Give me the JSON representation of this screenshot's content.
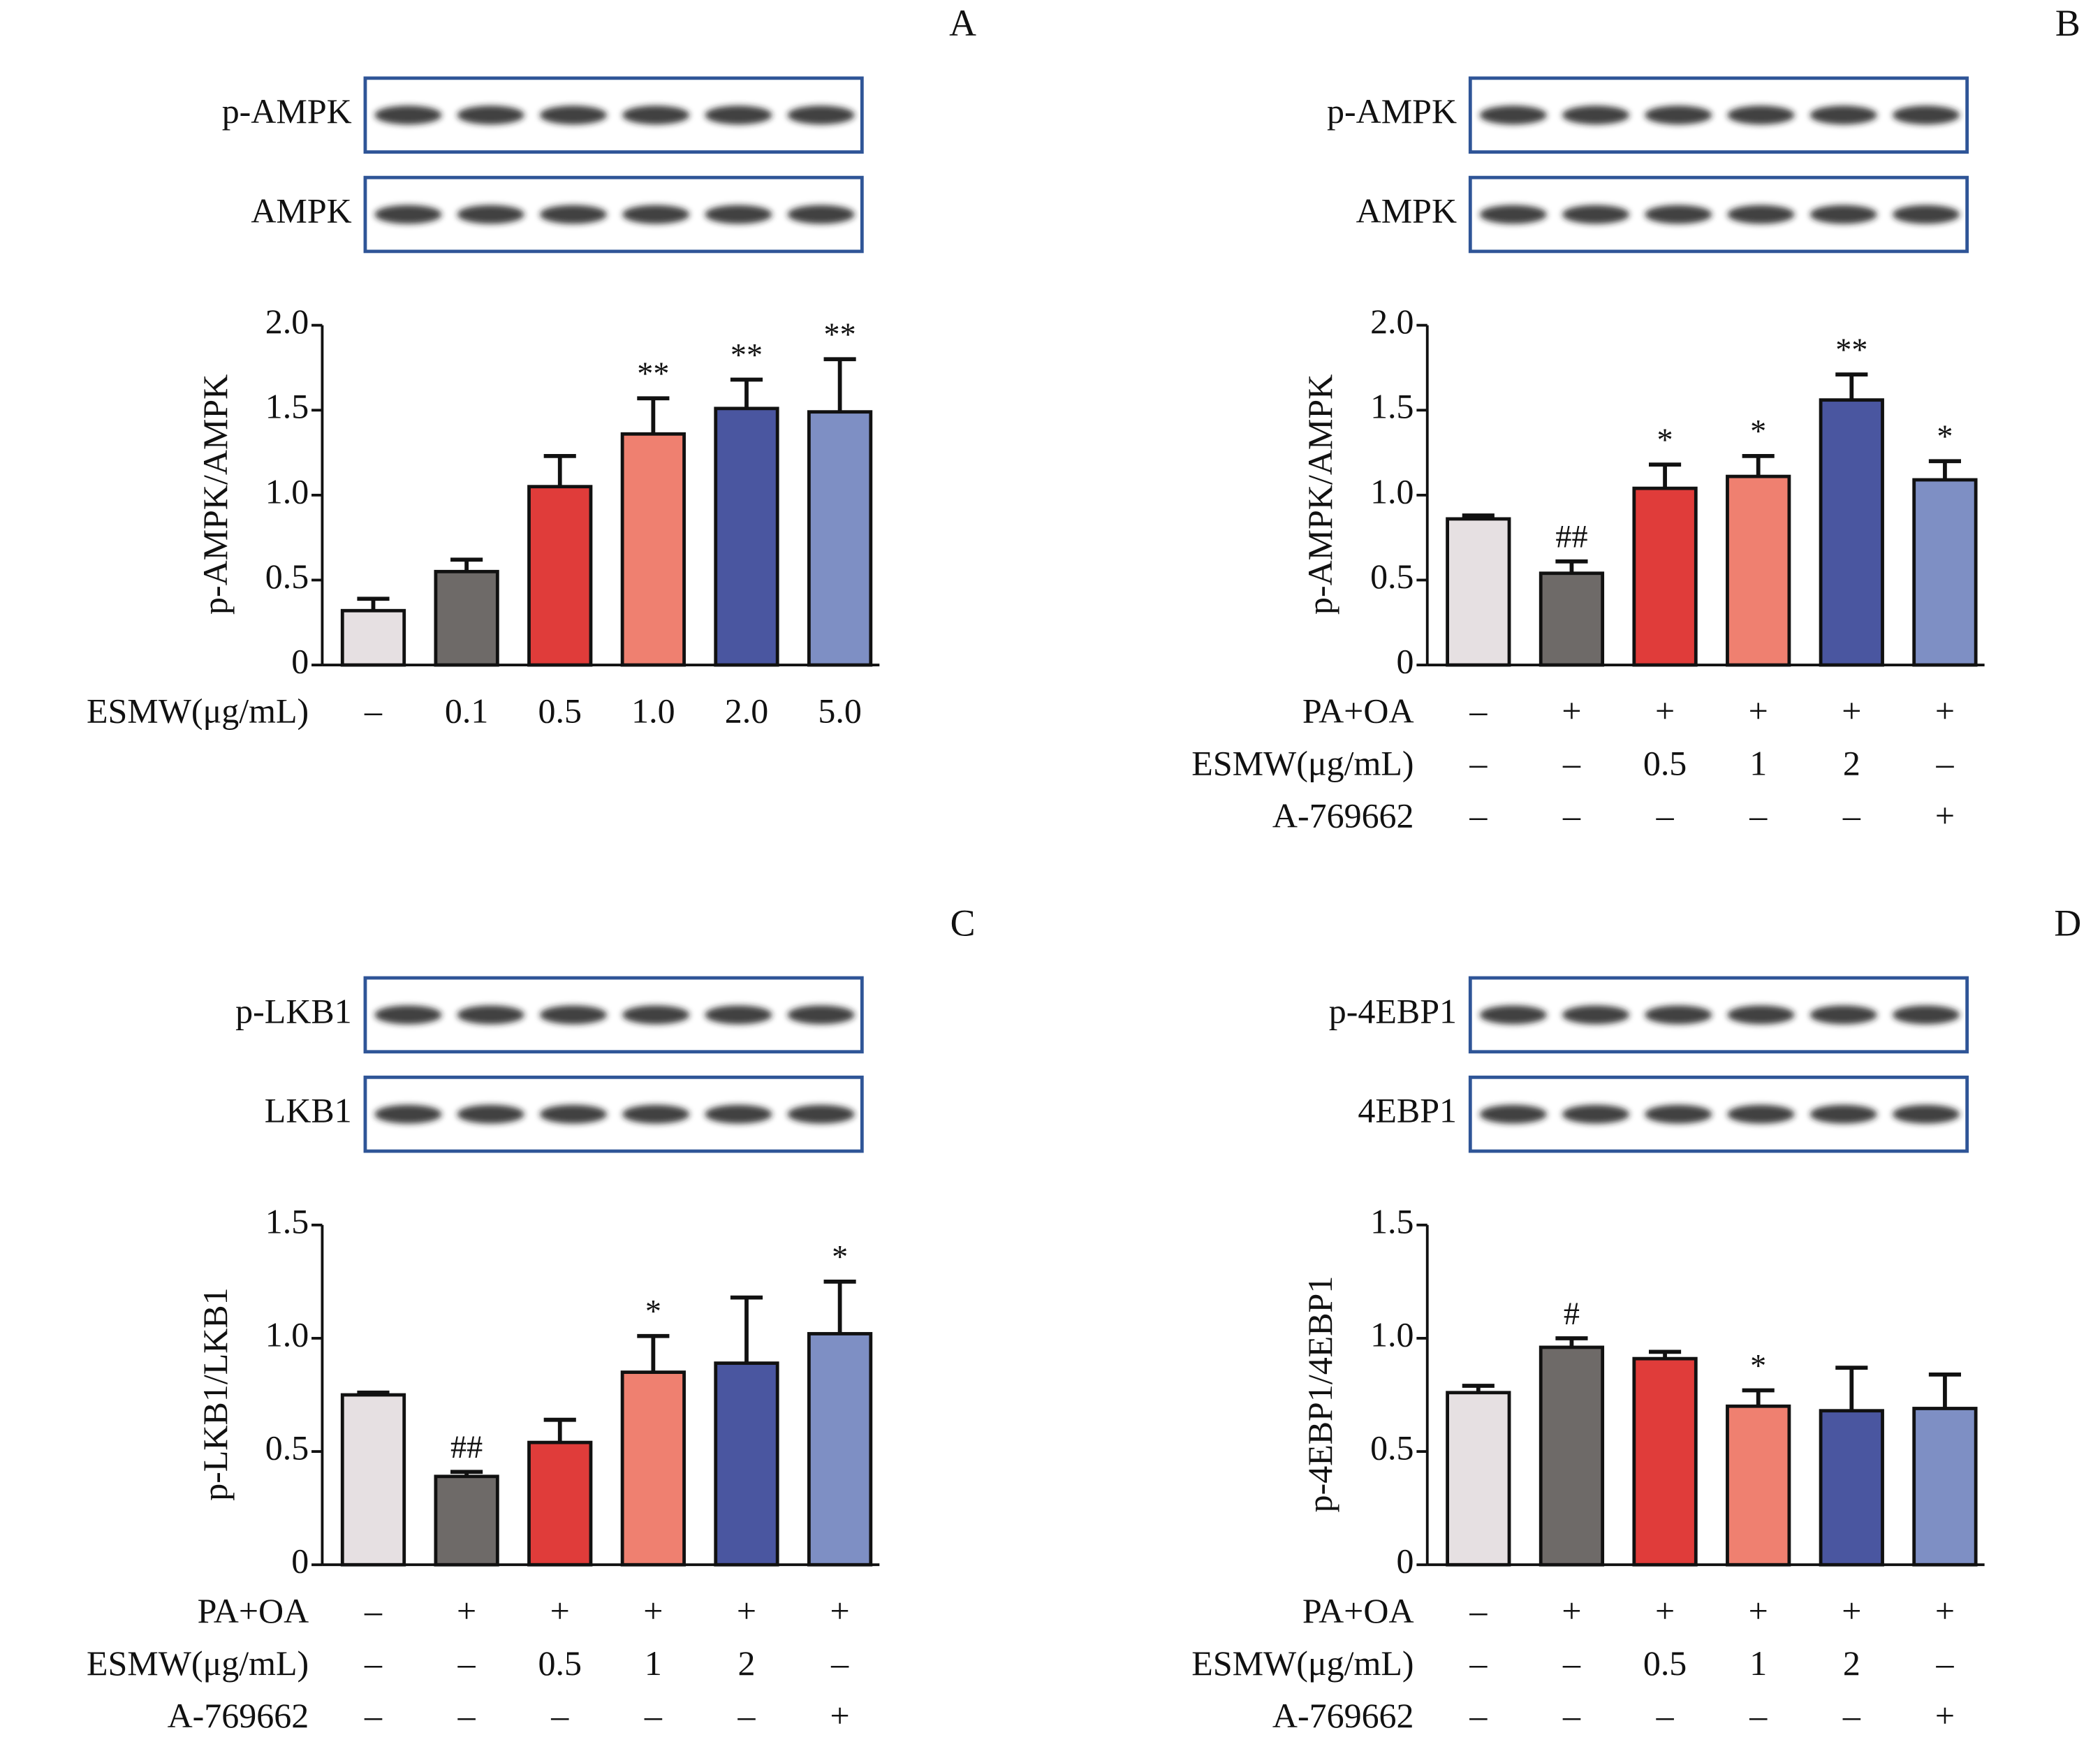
{
  "chart_data": [
    {
      "type": "bar",
      "panel_label": "A",
      "blots": [
        "p-AMPK",
        "AMPK"
      ],
      "ylabel": "p-AMPK/AMPK",
      "ylim": [
        0,
        2
      ],
      "yticks": [
        0,
        0.5,
        {
          "value": 1,
          "label": "1.0"
        },
        1.5,
        {
          "value": 2,
          "label": "2.0"
        }
      ],
      "values": [
        0.32,
        0.55,
        1.05,
        1.36,
        1.51,
        1.49
      ],
      "errors": [
        0.07,
        0.07,
        0.18,
        0.21,
        0.17,
        0.31
      ],
      "colors": [
        "#e6e0e2",
        "#6e6a68",
        "#e03c3a",
        "#ef8070",
        "#4a56a0",
        "#7e8fc4"
      ],
      "annotations": [
        null,
        null,
        null,
        "**",
        "**",
        "**"
      ],
      "conditions": [
        {
          "label": "ESMW(μg/mL)",
          "values": [
            "–",
            "0.1",
            "0.5",
            "1.0",
            "2.0",
            "5.0"
          ]
        }
      ]
    },
    {
      "type": "bar",
      "panel_label": "B",
      "blots": [
        "p-AMPK",
        "AMPK"
      ],
      "ylabel": "p-AMPK/AMPK",
      "ylim": [
        0,
        2
      ],
      "yticks": [
        0,
        0.5,
        {
          "value": 1,
          "label": "1.0"
        },
        1.5,
        {
          "value": 2,
          "label": "2.0"
        }
      ],
      "values": [
        0.86,
        0.54,
        1.04,
        1.11,
        1.56,
        1.09
      ],
      "errors": [
        0.02,
        0.07,
        0.14,
        0.12,
        0.15,
        0.11
      ],
      "colors": [
        "#e6e0e2",
        "#6e6a68",
        "#e03c3a",
        "#ef8070",
        "#4a56a0",
        "#7e8fc4"
      ],
      "annotations": [
        null,
        "##",
        "*",
        "*",
        "**",
        "*"
      ],
      "conditions": [
        {
          "label": "PA+OA",
          "values": [
            "–",
            "+",
            "+",
            "+",
            "+",
            "+"
          ]
        },
        {
          "label": "ESMW(μg/mL)",
          "values": [
            "–",
            "–",
            "0.5",
            "1",
            "2",
            "–"
          ]
        },
        {
          "label": "A-769662",
          "values": [
            "–",
            "–",
            "–",
            "–",
            "–",
            "+"
          ]
        }
      ]
    },
    {
      "type": "bar",
      "panel_label": "C",
      "blots": [
        "p-LKB1",
        "LKB1"
      ],
      "ylabel": "p-LKB1/LKB1",
      "ylim": [
        0,
        1.5
      ],
      "yticks": [
        0,
        0.5,
        {
          "value": 1,
          "label": "1.0"
        },
        1.5
      ],
      "values": [
        0.75,
        0.39,
        0.54,
        0.85,
        0.89,
        1.02
      ],
      "errors": [
        0.01,
        0.02,
        0.1,
        0.16,
        0.29,
        0.23
      ],
      "colors": [
        "#e6e0e2",
        "#6e6a68",
        "#e03c3a",
        "#ef8070",
        "#4a56a0",
        "#7e8fc4"
      ],
      "annotations": [
        null,
        "##",
        null,
        "*",
        null,
        "*"
      ],
      "conditions": [
        {
          "label": "PA+OA",
          "values": [
            "–",
            "+",
            "+",
            "+",
            "+",
            "+"
          ]
        },
        {
          "label": "ESMW(μg/mL)",
          "values": [
            "–",
            "–",
            "0.5",
            "1",
            "2",
            "–"
          ]
        },
        {
          "label": "A-769662",
          "values": [
            "–",
            "–",
            "–",
            "–",
            "–",
            "+"
          ]
        }
      ]
    },
    {
      "type": "bar",
      "panel_label": "D",
      "blots": [
        "p-4EBP1",
        "4EBP1"
      ],
      "ylabel": "p-4EBP1/4EBP1",
      "ylim": [
        0,
        1.5
      ],
      "yticks": [
        0,
        0.5,
        {
          "value": 1,
          "label": "1.0"
        },
        1.5
      ],
      "values": [
        0.76,
        0.96,
        0.91,
        0.7,
        0.68,
        0.69
      ],
      "errors": [
        0.03,
        0.04,
        0.03,
        0.07,
        0.19,
        0.15
      ],
      "colors": [
        "#e6e0e2",
        "#6e6a68",
        "#e03c3a",
        "#ef8070",
        "#4a56a0",
        "#7e8fc4"
      ],
      "annotations": [
        null,
        "#",
        null,
        "*",
        null,
        null
      ],
      "conditions": [
        {
          "label": "PA+OA",
          "values": [
            "–",
            "+",
            "+",
            "+",
            "+",
            "+"
          ]
        },
        {
          "label": "ESMW(μg/mL)",
          "values": [
            "–",
            "–",
            "0.5",
            "1",
            "2",
            "–"
          ]
        },
        {
          "label": "A-769662",
          "values": [
            "–",
            "–",
            "–",
            "–",
            "–",
            "+"
          ]
        }
      ]
    }
  ]
}
